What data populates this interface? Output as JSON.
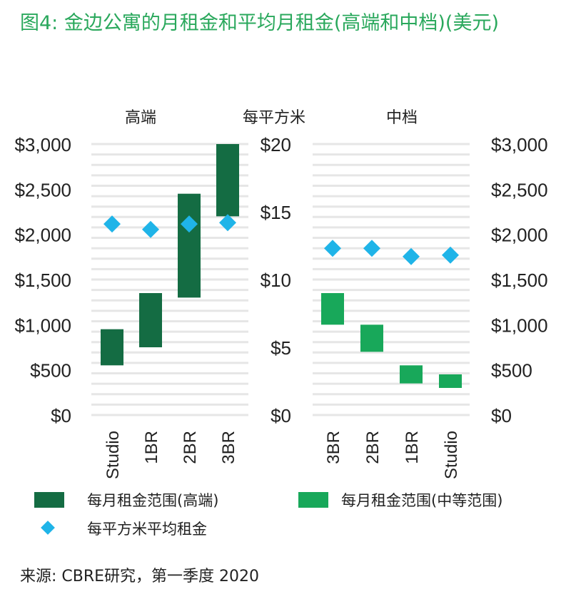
{
  "title": "图4: 金边公寓的月租金和平均月租金(高端和中档)(美元)",
  "source": "来源: CBRE研究，第一季度 2020",
  "colors": {
    "title": "#2aa85c",
    "high_end_bar": "#146c43",
    "mid_range_bar": "#18a85a",
    "avg_marker": "#1fb4e8",
    "grid": "#e6e6e6"
  },
  "legend": {
    "high_end_range": "每月租金范围(高端)",
    "mid_range": "每月租金范围(中等范围)",
    "avg_per_sqm": "每平方米平均租金"
  },
  "chart_data": [
    {
      "type": "bar",
      "panel_title": "高端",
      "categories": [
        "Studio",
        "1BR",
        "2BR",
        "3BR"
      ],
      "series": [
        {
          "name": "每月租金范围(高端)",
          "kind": "range",
          "ranges": [
            [
              550,
              950
            ],
            [
              750,
              1350
            ],
            [
              1300,
              2450
            ],
            [
              2200,
              3000
            ]
          ]
        },
        {
          "name": "每平方米平均租金",
          "kind": "marker",
          "axis": "per_sqm",
          "values": [
            14.1,
            13.7,
            14.1,
            14.2
          ]
        }
      ],
      "y_left": {
        "ylim": [
          0,
          3000
        ],
        "ticks": [
          "$0",
          "$500",
          "$1,000",
          "$1,500",
          "$2,000",
          "$2,500",
          "$3,000"
        ]
      },
      "y_per_sqm": {
        "ylim": [
          0,
          20
        ]
      },
      "grid": true
    },
    {
      "type": "bar",
      "panel_title": "中档",
      "categories": [
        "3BR",
        "2BR",
        "1BR",
        "Studio"
      ],
      "series": [
        {
          "name": "每月租金范围(中等范围)",
          "kind": "range",
          "ranges": [
            [
              1000,
              1350
            ],
            [
              700,
              1000
            ],
            [
              350,
              550
            ],
            [
              300,
              450
            ]
          ]
        },
        {
          "name": "每平方米平均租金",
          "kind": "marker",
          "axis": "per_sqm",
          "values": [
            12.3,
            12.3,
            11.7,
            11.8
          ]
        }
      ],
      "y_left": {
        "ylabel": "每平方米",
        "ylim": [
          0,
          20
        ],
        "ticks": [
          "$0",
          "$5",
          "$10",
          "$15",
          "$20"
        ]
      },
      "y_right": {
        "ylim": [
          0,
          3000
        ],
        "ticks": [
          "$0",
          "$500",
          "$1,000",
          "$1,500",
          "$2,000",
          "$2,500",
          "$3,000"
        ]
      },
      "grid": true
    }
  ]
}
